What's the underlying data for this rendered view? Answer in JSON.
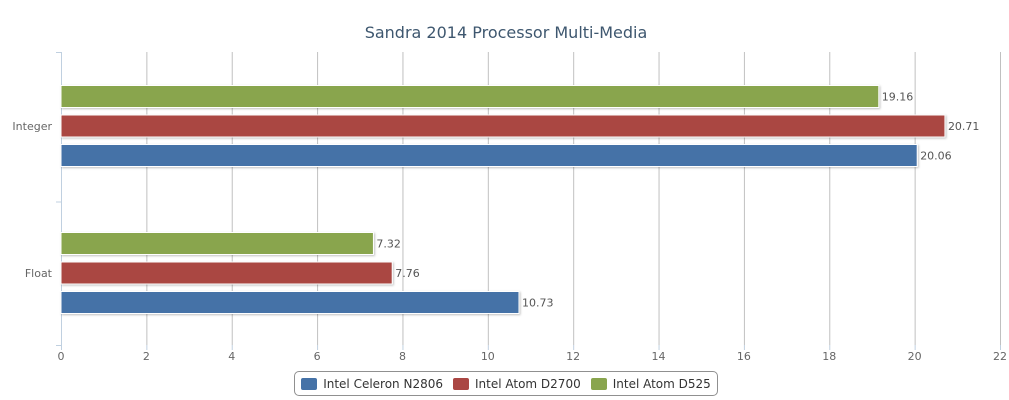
{
  "chart_data": {
    "type": "bar",
    "orientation": "horizontal",
    "title": "Sandra 2014 Processor Multi-Media",
    "categories": [
      "Integer",
      "Float"
    ],
    "series": [
      {
        "name": "Intel Atom D525",
        "color": "#89a54e",
        "values": [
          19.16,
          7.32
        ]
      },
      {
        "name": "Intel Atom D2700",
        "color": "#aa4643",
        "values": [
          20.71,
          7.76
        ]
      },
      {
        "name": "Intel Celeron N2806",
        "color": "#4572a7",
        "values": [
          20.06,
          10.73
        ]
      }
    ],
    "xlim": [
      0,
      22
    ],
    "ticks": [
      0,
      2,
      4,
      6,
      8,
      10,
      12,
      14,
      16,
      18,
      20,
      22
    ],
    "grid": true,
    "data_labels": true,
    "legend": {
      "placement": "bottom-center",
      "order": [
        "Intel Celeron N2806",
        "Intel Atom D2700",
        "Intel Atom D525"
      ]
    }
  }
}
